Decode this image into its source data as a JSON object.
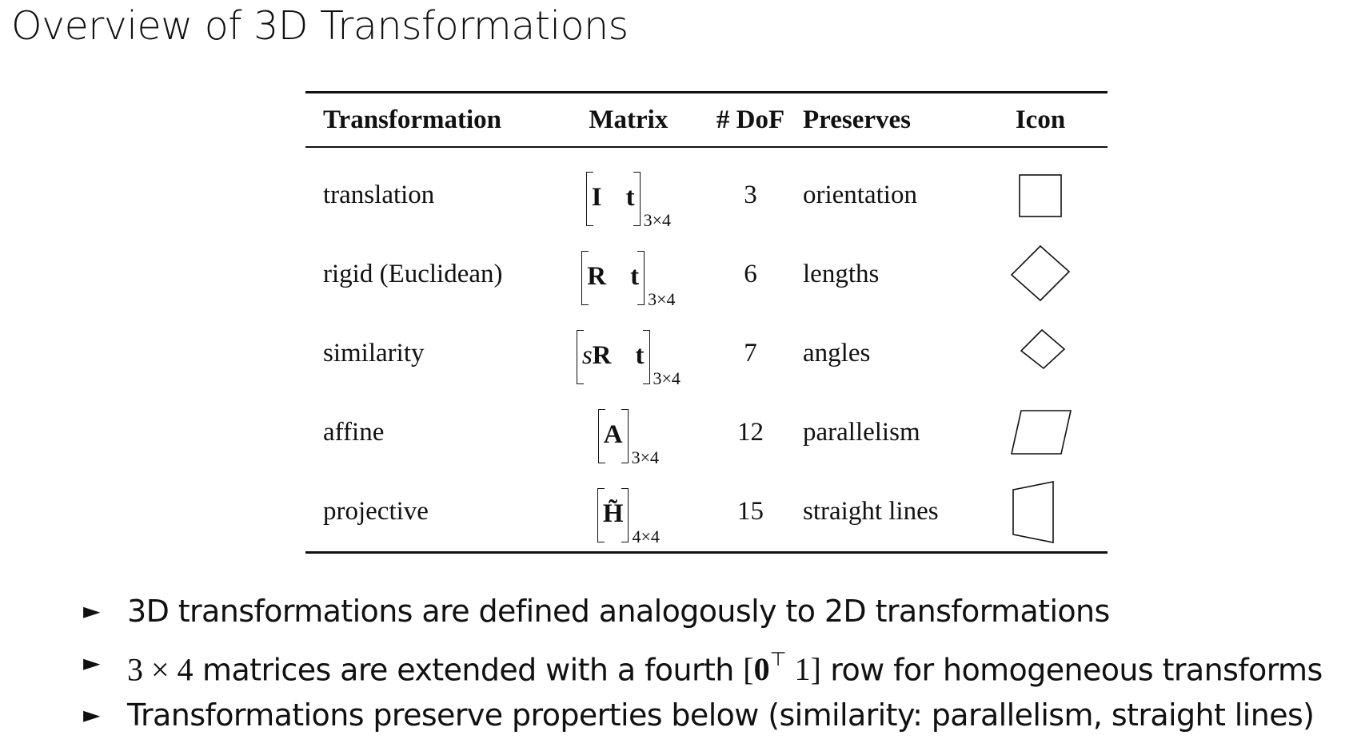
{
  "title": "Overview of 3D Transformations",
  "table": {
    "headers": {
      "transformation": "Transformation",
      "matrix": "Matrix",
      "dof": "# DoF",
      "preserves": "Preserves",
      "icon": "Icon"
    },
    "rows": [
      {
        "name": "translation",
        "matrix_entries": [
          "I",
          "t"
        ],
        "matrix_size": "3×4",
        "dof": "3",
        "preserves": "orientation",
        "icon": "square-icon"
      },
      {
        "name": "rigid (Euclidean)",
        "matrix_entries": [
          "R",
          "t"
        ],
        "matrix_size": "3×4",
        "dof": "6",
        "preserves": "lengths",
        "icon": "rotated-square-icon"
      },
      {
        "name": "similarity",
        "matrix_entries": [
          "sR",
          "t"
        ],
        "matrix_size": "3×4",
        "dof": "7",
        "preserves": "angles",
        "icon": "small-rotated-square-icon"
      },
      {
        "name": "affine",
        "matrix_entries": [
          "A"
        ],
        "matrix_size": "3×4",
        "dof": "12",
        "preserves": "parallelism",
        "icon": "parallelogram-icon"
      },
      {
        "name": "projective",
        "matrix_entries": [
          "H̃"
        ],
        "matrix_size": "4×4",
        "dof": "15",
        "preserves": "straight lines",
        "icon": "trapezoid-icon"
      }
    ]
  },
  "bullets": {
    "marker": "►",
    "b1": "3D transformations are defined analogously to 2D transformations",
    "b2_math_lead": "3 × 4",
    "b2_text_a": " matrices are extended with a fourth ",
    "b2_math_row_zero": "0",
    "b2_math_row_transpose": "⊤",
    "b2_math_row_one": "1",
    "b2_text_b": " row for homogeneous transforms",
    "b3": "Transformations preserve properties below (similarity: parallelism, straight lines)"
  }
}
